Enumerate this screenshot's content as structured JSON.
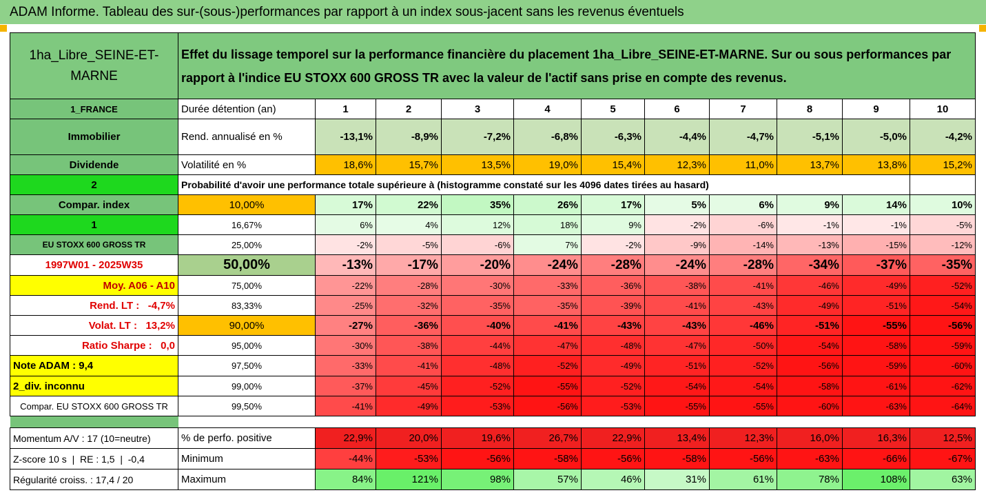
{
  "header": {
    "title": "ADAM Informe. Tableau des sur-(sous-)performances par rapport à un index sous-jacent sans les revenus éventuels"
  },
  "table": {
    "name": "1ha_Libre_SEINE-ET-MARNE",
    "description": "Effet du lissage temporel sur la performance financière du placement 1ha_Libre_SEINE-ET-MARNE. Sur ou sous performances par rapport à l'indice EU STOXX 600 GROSS TR avec la valeur de l'actif sans prise en compte des revenus.",
    "rows": [
      [
        "1_FRANCE",
        "Durée détention (an)",
        "1",
        "2",
        "3",
        "4",
        "5",
        "6",
        "7",
        "8",
        "9",
        "10"
      ],
      [
        "Immobilier",
        "Rend. annualisé en %",
        "-13,1%",
        "-8,9%",
        "-7,2%",
        "-6,8%",
        "-6,3%",
        "-4,4%",
        "-4,7%",
        "-5,1%",
        "-5,0%",
        "-4,2%"
      ],
      [
        "Dividende",
        "Volatilité en %",
        "18,6%",
        "15,7%",
        "13,5%",
        "19,0%",
        "15,4%",
        "12,3%",
        "11,0%",
        "13,7%",
        "13,8%",
        "15,2%"
      ],
      [
        "2",
        "Probabilité d'avoir une performance totale supérieure à (histogramme constaté sur les 4096 dates tirées au hasard)"
      ],
      [
        "Compar. index",
        "10,00%",
        "17%",
        "22%",
        "35%",
        "26%",
        "17%",
        "5%",
        "6%",
        "9%",
        "14%",
        "10%"
      ],
      [
        "1",
        "16,67%",
        "6%",
        "4%",
        "12%",
        "18%",
        "9%",
        "-2%",
        "-6%",
        "-1%",
        "-1%",
        "-5%"
      ],
      [
        "EU STOXX 600 GROSS TR",
        "25,00%",
        "-2%",
        "-5%",
        "-6%",
        "7%",
        "-2%",
        "-9%",
        "-14%",
        "-13%",
        "-15%",
        "-12%"
      ],
      [
        "1997W01 - 2025W35",
        "50,00%",
        "-13%",
        "-17%",
        "-20%",
        "-24%",
        "-28%",
        "-24%",
        "-28%",
        "-34%",
        "-37%",
        "-35%"
      ],
      [
        "Moy. A06 - A10",
        "75,00%",
        "-22%",
        "-28%",
        "-30%",
        "-33%",
        "-36%",
        "-38%",
        "-41%",
        "-46%",
        "-49%",
        "-52%"
      ],
      [
        "Rend. LT :   -4,7%",
        "83,33%",
        "-25%",
        "-32%",
        "-35%",
        "-35%",
        "-39%",
        "-41%",
        "-43%",
        "-49%",
        "-51%",
        "-54%"
      ],
      [
        "Volat. LT :   13,2%",
        "90,00%",
        "-27%",
        "-36%",
        "-40%",
        "-41%",
        "-43%",
        "-43%",
        "-46%",
        "-51%",
        "-55%",
        "-56%"
      ],
      [
        "Ratio Sharpe :   0,0",
        "95,00%",
        "-30%",
        "-38%",
        "-44%",
        "-47%",
        "-48%",
        "-47%",
        "-50%",
        "-54%",
        "-58%",
        "-59%"
      ],
      [
        "Note ADAM : 9,4",
        "97,50%",
        "-33%",
        "-41%",
        "-48%",
        "-52%",
        "-49%",
        "-51%",
        "-52%",
        "-56%",
        "-59%",
        "-60%"
      ],
      [
        "2_div. inconnu",
        "99,00%",
        "-37%",
        "-45%",
        "-52%",
        "-55%",
        "-52%",
        "-54%",
        "-54%",
        "-58%",
        "-61%",
        "-62%"
      ],
      [
        "Compar. EU STOXX 600 GROSS TR",
        "99,50%",
        "-41%",
        "-49%",
        "-53%",
        "-56%",
        "-53%",
        "-55%",
        "-55%",
        "-60%",
        "-63%",
        "-64%"
      ],
      [
        "Momentum A/V : 17 (10=neutre)",
        "% de perfo. positive",
        "22,9%",
        "20,0%",
        "19,6%",
        "26,7%",
        "22,9%",
        "13,4%",
        "12,3%",
        "16,0%",
        "16,3%",
        "12,5%"
      ],
      [
        "Z-score 10 s  |  RE : 1,5  |  -0,4",
        "Minimum",
        "-44%",
        "-53%",
        "-56%",
        "-58%",
        "-56%",
        "-58%",
        "-56%",
        "-63%",
        "-66%",
        "-67%"
      ],
      [
        "Régularité croiss. : 17,4 / 20",
        "Maximum",
        "84%",
        "121%",
        "98%",
        "57%",
        "46%",
        "31%",
        "61%",
        "78%",
        "108%",
        "63%"
      ]
    ]
  }
}
